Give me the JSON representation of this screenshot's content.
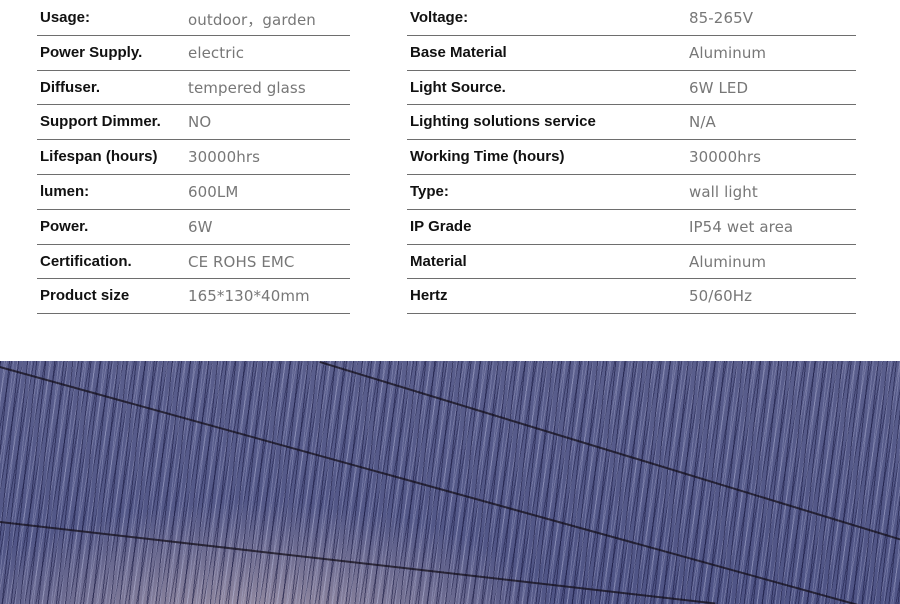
{
  "specs_left": [
    {
      "label": "Usage:",
      "value": "outdoor，garden"
    },
    {
      "label": "Power Supply.",
      "value": "electric"
    },
    {
      "label": "Diffuser.",
      "value": "tempered glass"
    },
    {
      "label": "Support Dimmer.",
      "value": "NO"
    },
    {
      "label": "Lifespan (hours)",
      "value": "30000hrs"
    },
    {
      "label": "lumen:",
      "value": "600LM"
    },
    {
      "label": "Power.",
      "value": "6W"
    },
    {
      "label": "Certification.",
      "value": "CE ROHS EMC"
    },
    {
      "label": "Product size",
      "value": "165*130*40mm"
    }
  ],
  "specs_right": [
    {
      "label": "Voltage:",
      "value": "85-265V"
    },
    {
      "label": "Base Material",
      "value": "Aluminum"
    },
    {
      "label": "Light Source.",
      "value": "6W LED"
    },
    {
      "label": "Lighting solutions service",
      "value": "N/A"
    },
    {
      "label": "Working Time (hours)",
      "value": "30000hrs"
    },
    {
      "label": "Type:",
      "value": "wall light"
    },
    {
      "label": "IP Grade",
      "value": "IP54 wet area"
    },
    {
      "label": "Material",
      "value": "Aluminum"
    },
    {
      "label": "Hertz",
      "value": "50/60Hz"
    }
  ]
}
